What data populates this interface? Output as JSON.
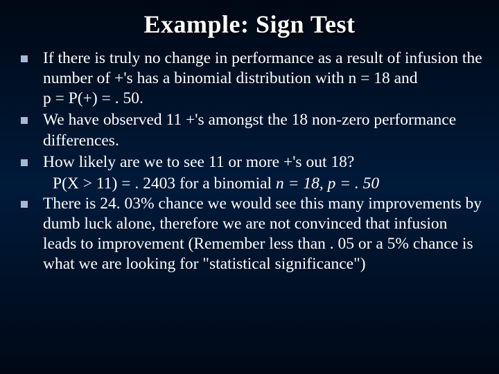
{
  "slide": {
    "title": "Example: Sign Test",
    "background_gradient": [
      "#000814",
      "#001a3a",
      "#000814"
    ],
    "title_color": "#ffffff",
    "title_fontsize": 36,
    "title_font": "Times New Roman",
    "body_color": "#ffffff",
    "body_fontsize": 23.5,
    "body_font": "Times New Roman",
    "bullet_color": "#a6b8d4",
    "bullet_size": 10,
    "bullets": [
      {
        "text": "If there is truly no change in performance as a result of infusion the number of +'s has a binomial distribution with  n = 18 and",
        "lines_after": [
          "p = P(+) = . 50."
        ]
      },
      {
        "text": "We have observed 11 +'s amongst the 18 non-zero performance differences."
      },
      {
        "text": "How likely are we to see 11 or more +'s out 18?",
        "indent_after": "P(X > 11) = . 2403 for a binomial ",
        "indent_after_ital": "n = 18, p = . 50"
      },
      {
        "text": "There is 24. 03% chance we would see this many improvements by dumb luck alone, therefore we are not convinced that infusion leads to improvement (Remember less than . 05 or a 5% chance is what we are looking for \"statistical significance\")"
      }
    ]
  }
}
